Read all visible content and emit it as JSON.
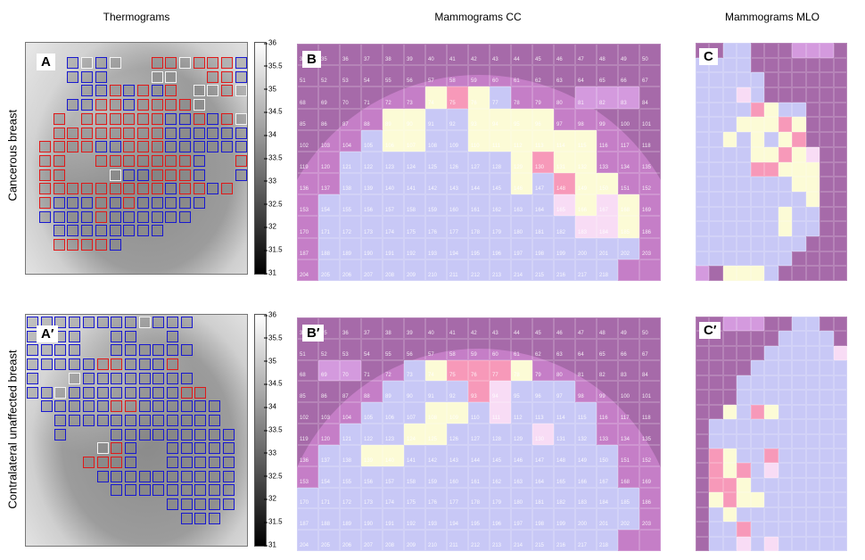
{
  "column_titles": {
    "thermograms": "Thermograms",
    "cc": "Mammograms CC",
    "mlo": "Mammograms MLO"
  },
  "row_labels": {
    "cancerous": "Cancerous breast",
    "contralateral": "Contralateral unaffected breast"
  },
  "panel_labels": {
    "A": "A",
    "A2": "A′",
    "B": "B",
    "B2": "B′",
    "C": "C",
    "C2": "C′"
  },
  "colorbar_ticks": [
    "36",
    "35.5",
    "35",
    "34.5",
    "34",
    "33.5",
    "33",
    "32.5",
    "32",
    "31.5",
    "31"
  ],
  "colors": {
    "thermo_box": {
      "R": "#e01818",
      "B": "#1818d0",
      "W": "#f4f4f4"
    },
    "mammo_cell": {
      "P": "#a66aa9",
      "B": "#c8c8f6",
      "Y": "#fcfbd6",
      "R": "#f799b9",
      "K": "#f8dcf5",
      "L": "#d49ade"
    }
  },
  "thermo_A": [
    "..BWBW..RRWRRRB",
    "..BBB...WW..RRB",
    "...BBRBRBR.WWRW",
    "..BBRRBRRRRW...",
    ".R.RRRRRRBBRBRW",
    ".RRRRRRRRBBBBBB",
    "RRRRBBRRRBBBBBB",
    "RR..RRRRRRRB..R",
    "RR...WBBRRRB..B",
    "RRRRRRRRRBRRBR.",
    "RBBBRBRBBBBB...",
    "BBBBRBBBBBB....",
    ".BBBBBBBB......",
    ".RRRRB........."
  ],
  "thermo_A2": [
    "BBBBBBBBWBBB....",
    "BBBB..BB..B.....",
    "BBBB..BBBBBB....",
    "BBBBBRRBBBR.....",
    "B..WBBBBBBBB....",
    "BBWBBBBBBBBRR...",
    ".BBBBBRRBBBBBB..",
    "..BBBBBBBBBBBB..",
    "..B...BBBBBBBBB.",
    ".....WRB..BBBBB.",
    "....RRRB..BBBBB.",
    ".....BBBBBBBBBB.",
    "......BBBBBBBBB.",
    "..........BBBBB.",
    "...........BBB.."
  ],
  "cc_numbering": {
    "first": 34,
    "last": 218
  },
  "cc_B": [
    "PPPPPPPPPPPPPPPPP",
    "PPPPPPPPPPPPPPPPP",
    "PPPPPPYRYBPPPLLLP",
    "PPPPYYBBYYYYPPPPP",
    "PPPBYYBBYYYYYYPPP",
    "PPBBBBBBBBYRYYPPP",
    "PPBBBBBBBBYBRYYPP",
    "PBBBBBBBBBBBKYKYP",
    "PBBBBBBBBBBBBKKYP",
    "PBBBBBBBBBBBBBBBP",
    "PBBBBBBBBBBBBBBPP"
  ],
  "cc_B2": [
    "PPPPPPPPPPPPPPPPP",
    "PPPPPPPPPPPPPPPPP",
    "PLLPPBYRRRYPPPPPP",
    "PPPPBBBBRKBBBPPPP",
    "PPPBBBYYBKBBBBPPP",
    "PPBBBYYBBBBKBBPPP",
    "PBBYYBBBBBBBBBBPP",
    "PBBBBBBBBBBBBBBPP",
    "BBBBBBBBBBBBBBBBP",
    "BBBBBBBBBBBBBBBBP",
    "BBBBBBBBBBBBBBBPP"
  ],
  "mlo_C": [
    "PPBBPPPLLLP",
    "BBBBPPPPPPP",
    "BBBBBPPPPPP",
    "BBBKBPPPPPP",
    "BBBBRYBBPPP",
    "BBBYYYRYPPP",
    "BBYBYBYRPPP",
    "BBBBYYRYKPP",
    "BBBBRRYYYPP",
    "BBBBBBBYYPP",
    "BBBBBBBBYPP",
    "BBBBBBYBBPP",
    "BBBBBBYBBPP",
    "BBBBBBBBPPP",
    "BBBBBBBPPPP",
    "LPYYYBPPPPP"
  ],
  "mlo_C2": [
    "PPLLLPPBBPP",
    "PPPPPPBBBBP",
    "PPPPPBBBBBK",
    "PPPPBBBBBBB",
    "PPPBBBBBBBB",
    "PPPBBBBBBBB",
    "PPYBRYBBBBB",
    "PBBBBBBBBBB",
    "PBBBBBBBBBB",
    "PRYBBRBBBBB",
    "PRYRBKBBBBB",
    "PRRYBBBBBBB",
    "PYRYYBBBBBB",
    "PBYBBBBBBBB",
    "PBBRBBBBBBB",
    "PBBKBKBBBBB"
  ]
}
